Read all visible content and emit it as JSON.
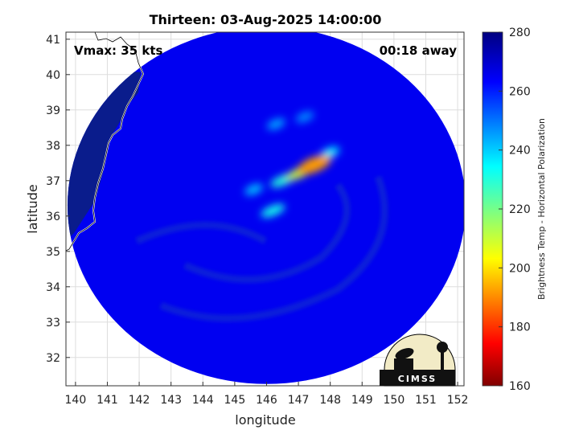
{
  "chart_data": {
    "type": "heatmap",
    "title": "Thirteen: 03-Aug-2025 14:00:00",
    "annotations": {
      "vmax": "Vmax: 35 kts",
      "away": "00:18 away"
    },
    "xlabel": "longitude",
    "ylabel": "latitude",
    "xlim": [
      139.7,
      152.2
    ],
    "ylim": [
      31.2,
      41.2
    ],
    "xticks": [
      140,
      141,
      142,
      143,
      144,
      145,
      146,
      147,
      148,
      149,
      150,
      151,
      152
    ],
    "yticks": [
      32,
      33,
      34,
      35,
      36,
      37,
      38,
      39,
      40,
      41
    ],
    "grid": true,
    "swath_center": [
      146.0,
      36.3
    ],
    "swath_radius_lon": 6.25,
    "swath_radius_lat": 5.05,
    "background_temp_k": 265,
    "ocean_left_temp_k": 272,
    "colorbar": {
      "label": "Brightness Temp - Horizontal Polarization",
      "range": [
        160,
        280
      ],
      "ticks": [
        160,
        180,
        200,
        220,
        240,
        260,
        280
      ],
      "colormap": "jet"
    },
    "features": [
      {
        "lon": 147.5,
        "lat": 37.45,
        "temp_k": 192,
        "name": "core"
      },
      {
        "lon": 147.0,
        "lat": 37.2,
        "temp_k": 210
      },
      {
        "lon": 146.5,
        "lat": 37.0,
        "temp_k": 230
      },
      {
        "lon": 145.6,
        "lat": 36.75,
        "temp_k": 242
      },
      {
        "lon": 146.2,
        "lat": 36.15,
        "temp_k": 232
      },
      {
        "lon": 146.3,
        "lat": 38.6,
        "temp_k": 245
      },
      {
        "lon": 147.2,
        "lat": 38.8,
        "temp_k": 248
      },
      {
        "lon": 148.0,
        "lat": 37.8,
        "temp_k": 236
      }
    ],
    "logo_text": "CIMSS"
  }
}
